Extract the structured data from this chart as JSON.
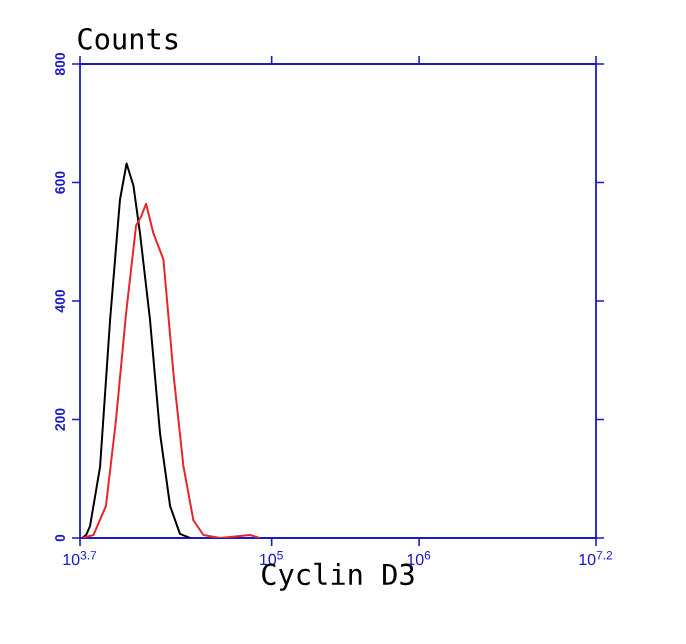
{
  "chart_data": {
    "type": "line",
    "title": "Counts",
    "xlabel": "Cyclin D3",
    "log": "x",
    "xlim": [
      5011.87,
      15848932
    ],
    "ylim": [
      0,
      800
    ],
    "xticks": [
      {
        "value": 5011.87,
        "label": "10$^{3.7}$"
      },
      {
        "value": 100000,
        "label": "10$^{5}$"
      },
      {
        "value": 1000000,
        "label": "10$^{6}$"
      },
      {
        "value": 15848932,
        "label": "10$^{7.2}$"
      }
    ],
    "yticks": [
      0,
      200,
      400,
      600,
      800
    ],
    "grid": false,
    "legend": false,
    "marker": "none",
    "line_style": "solid",
    "series": [
      {
        "color": "#000000",
        "x": [
          5176,
          5508,
          5861,
          6855,
          8017,
          9354,
          10375,
          11535,
          12794,
          14962,
          17498,
          20464,
          23878,
          27925
        ],
        "values": [
          0,
          5,
          20,
          120,
          368,
          571,
          632,
          595,
          514,
          368,
          176,
          54,
          7,
          0
        ]
      },
      {
        "color": "#e8262a",
        "x": [
          5176,
          6180,
          7516,
          8790,
          10280,
          12023,
          13092,
          14060,
          15776,
          18450,
          21577,
          25177,
          29444,
          34435,
          44668,
          71285,
          83368
        ],
        "values": [
          0,
          5,
          54,
          199,
          378,
          527,
          544,
          564,
          514,
          470,
          277,
          122,
          30,
          5,
          0,
          5,
          0
        ]
      }
    ]
  }
}
